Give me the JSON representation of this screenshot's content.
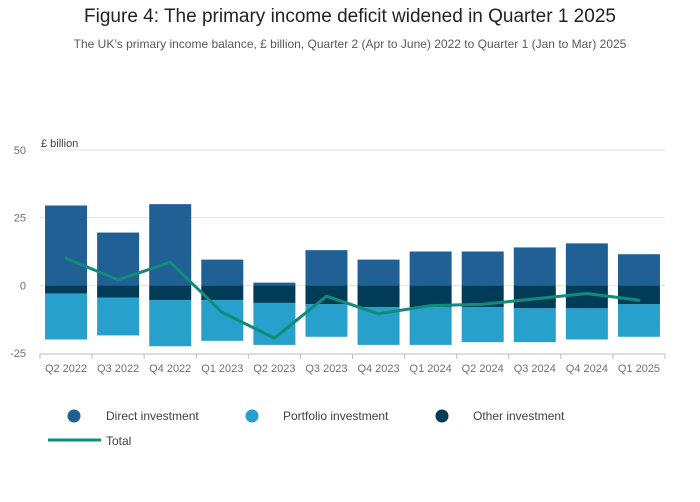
{
  "chart_data": {
    "type": "bar",
    "stacked": true,
    "title": "Figure 4: The primary income deficit widened in Quarter 1 2025",
    "subtitle": "The UK’s primary income balance, £ billion, Quarter 2 (Apr to June) 2022 to Quarter 1 (Jan to Mar) 2025",
    "ylabel": "£ billion",
    "ylim": [
      -25,
      50
    ],
    "yticks": [
      -25,
      0,
      25,
      50
    ],
    "categories": [
      "Q2 2022",
      "Q3 2022",
      "Q4 2022",
      "Q1 2023",
      "Q2 2023",
      "Q3 2023",
      "Q4 2023",
      "Q1 2024",
      "Q2 2024",
      "Q3 2024",
      "Q4 2024",
      "Q1 2025"
    ],
    "series": [
      {
        "name": "Direct investment",
        "kind": "bar",
        "color": "#206095",
        "values": [
          29.5,
          19.5,
          30.0,
          9.5,
          1.0,
          13.0,
          9.5,
          12.5,
          12.5,
          14.0,
          15.5,
          11.5
        ]
      },
      {
        "name": "Other investment",
        "kind": "bar",
        "color": "#003c57",
        "values": [
          -3.0,
          -4.5,
          -5.5,
          -5.5,
          -6.5,
          -7.0,
          -8.0,
          -8.0,
          -8.0,
          -8.5,
          -8.5,
          -7.0
        ]
      },
      {
        "name": "Portfolio investment",
        "kind": "bar",
        "color": "#27a0cc",
        "values": [
          -17.0,
          -14.0,
          -17.0,
          -15.0,
          -15.5,
          -12.0,
          -14.0,
          -14.0,
          -13.0,
          -12.5,
          -11.5,
          -12.0
        ]
      },
      {
        "name": "Total",
        "kind": "line",
        "color": "#118c7b",
        "values": [
          10.0,
          2.0,
          8.5,
          -10.0,
          -19.5,
          -4.0,
          -10.5,
          -7.5,
          -7.0,
          -5.0,
          -3.0,
          -5.5
        ]
      }
    ],
    "legend": {
      "position": "bottom",
      "items": [
        {
          "label": "Direct investment",
          "color": "#206095",
          "symbol": "circle"
        },
        {
          "label": "Portfolio investment",
          "color": "#27a0cc",
          "symbol": "circle"
        },
        {
          "label": "Other investment",
          "color": "#003c57",
          "symbol": "circle"
        },
        {
          "label": "Total",
          "color": "#118c7b",
          "symbol": "line"
        }
      ]
    },
    "grid": true
  }
}
